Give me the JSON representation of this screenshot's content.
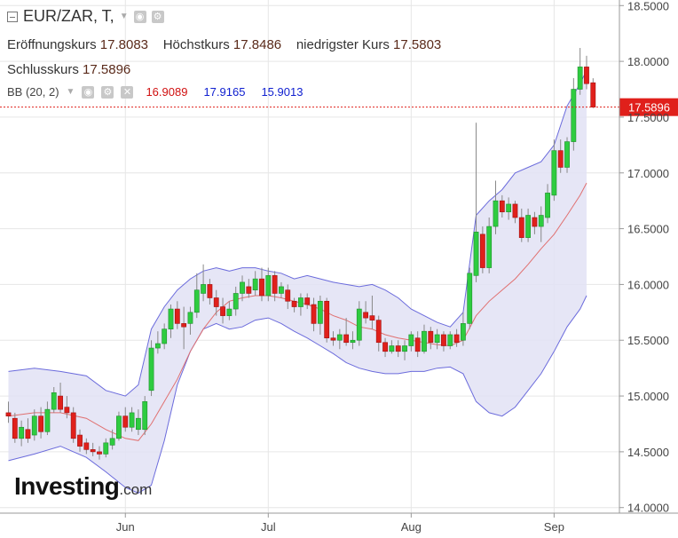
{
  "header": {
    "symbol": "EUR/ZAR, T,",
    "open_label": "Eröffnungskurs",
    "open_value": "17.8083",
    "high_label": "Höchstkurs",
    "high_value": "17.8486",
    "low_label": "niedrigster Kurs",
    "low_value": "17.5803",
    "close_label": "Schlusskurs",
    "close_value": "17.5896"
  },
  "indicator": {
    "label": "BB (20, 2)",
    "middle": "16.9089",
    "upper": "17.9165",
    "lower": "15.9013"
  },
  "logo": {
    "main": "Investing",
    "suffix": ".com"
  },
  "colors": {
    "up": "#2ecc40",
    "down": "#e0201b",
    "band_fill": "#e2e2f4",
    "band_line": "#6b6bdc",
    "middle_line": "#e07070",
    "price_marker": "#e0201b",
    "grid": "#e6e6e6"
  },
  "chart_data": {
    "type": "candlestick",
    "title": "EUR/ZAR",
    "ylim": [
      13.95,
      18.55
    ],
    "y_ticks": [
      "14.0000",
      "14.5000",
      "15.0000",
      "15.5000",
      "16.0000",
      "16.5000",
      "17.0000",
      "17.5000",
      "18.0000",
      "18.5000"
    ],
    "x_labels": [
      {
        "label": "Jun",
        "index": 18
      },
      {
        "label": "Jul",
        "index": 40
      },
      {
        "label": "Aug",
        "index": 62
      },
      {
        "label": "Sep",
        "index": 84
      }
    ],
    "num_slots": 89,
    "last_price": "17.5896",
    "last_price_value": 17.5896,
    "candles": [
      [
        14.85,
        14.82,
        14.95,
        14.76
      ],
      [
        14.8,
        14.62,
        14.85,
        14.58
      ],
      [
        14.62,
        14.72,
        14.78,
        14.55
      ],
      [
        14.7,
        14.62,
        14.8,
        14.58
      ],
      [
        14.65,
        14.82,
        14.88,
        14.6
      ],
      [
        14.82,
        14.68,
        14.9,
        14.62
      ],
      [
        14.68,
        14.88,
        14.95,
        14.65
      ],
      [
        14.88,
        15.03,
        15.08,
        14.85
      ],
      [
        15.0,
        14.88,
        15.12,
        14.85
      ],
      [
        14.9,
        14.85,
        15.0,
        14.8
      ],
      [
        14.85,
        14.62,
        14.9,
        14.58
      ],
      [
        14.65,
        14.55,
        14.7,
        14.5
      ],
      [
        14.58,
        14.52,
        14.62,
        14.48
      ],
      [
        14.52,
        14.5,
        14.58,
        14.46
      ],
      [
        14.5,
        14.48,
        14.55,
        14.43
      ],
      [
        14.48,
        14.58,
        14.62,
        14.45
      ],
      [
        14.56,
        14.62,
        14.7,
        14.52
      ],
      [
        14.62,
        14.82,
        14.86,
        14.6
      ],
      [
        14.82,
        14.72,
        14.9,
        14.68
      ],
      [
        14.72,
        14.85,
        14.9,
        14.68
      ],
      [
        14.7,
        14.8,
        14.88,
        14.65
      ],
      [
        14.7,
        14.95,
        15.0,
        14.65
      ],
      [
        15.05,
        15.43,
        15.5,
        15.0
      ],
      [
        15.43,
        15.47,
        15.58,
        15.38
      ],
      [
        15.47,
        15.6,
        15.65,
        15.42
      ],
      [
        15.6,
        15.78,
        15.82,
        15.52
      ],
      [
        15.78,
        15.65,
        15.85,
        15.6
      ],
      [
        15.65,
        15.62,
        15.8,
        15.42
      ],
      [
        15.65,
        15.75,
        15.8,
        15.55
      ],
      [
        15.75,
        15.95,
        16.1,
        15.7
      ],
      [
        15.92,
        16.0,
        16.18,
        15.85
      ],
      [
        16.0,
        15.88,
        16.05,
        15.82
      ],
      [
        15.88,
        15.8,
        15.95,
        15.72
      ],
      [
        15.8,
        15.72,
        15.88,
        15.65
      ],
      [
        15.72,
        15.78,
        15.85,
        15.68
      ],
      [
        15.78,
        15.92,
        15.98,
        15.72
      ],
      [
        15.92,
        16.02,
        16.08,
        15.85
      ],
      [
        15.98,
        15.92,
        16.05,
        15.88
      ],
      [
        15.95,
        16.05,
        16.12,
        15.9
      ],
      [
        16.05,
        15.9,
        16.15,
        15.85
      ],
      [
        15.9,
        16.08,
        16.15,
        15.85
      ],
      [
        16.08,
        15.92,
        16.12,
        15.85
      ],
      [
        15.92,
        15.98,
        16.02,
        15.88
      ],
      [
        15.95,
        15.85,
        16.0,
        15.78
      ],
      [
        15.85,
        15.8,
        15.88,
        15.75
      ],
      [
        15.8,
        15.88,
        15.92,
        15.72
      ],
      [
        15.88,
        15.82,
        15.92,
        15.78
      ],
      [
        15.82,
        15.65,
        15.88,
        15.58
      ],
      [
        15.65,
        15.85,
        15.9,
        15.55
      ],
      [
        15.85,
        15.52,
        15.88,
        15.48
      ],
      [
        15.52,
        15.5,
        15.58,
        15.45
      ],
      [
        15.5,
        15.55,
        15.6,
        15.42
      ],
      [
        15.55,
        15.48,
        15.7,
        15.45
      ],
      [
        15.48,
        15.5,
        15.58,
        15.42
      ],
      [
        15.5,
        15.78,
        15.85,
        15.45
      ],
      [
        15.75,
        15.7,
        15.85,
        15.65
      ],
      [
        15.72,
        15.68,
        15.9,
        15.6
      ],
      [
        15.68,
        15.48,
        15.72,
        15.4
      ],
      [
        15.48,
        15.4,
        15.52,
        15.35
      ],
      [
        15.4,
        15.45,
        15.5,
        15.38
      ],
      [
        15.45,
        15.4,
        15.5,
        15.35
      ],
      [
        15.4,
        15.45,
        15.5,
        15.32
      ],
      [
        15.45,
        15.55,
        15.58,
        15.4
      ],
      [
        15.52,
        15.4,
        15.58,
        15.35
      ],
      [
        15.4,
        15.58,
        15.64,
        15.38
      ],
      [
        15.58,
        15.48,
        15.62,
        15.42
      ],
      [
        15.48,
        15.55,
        15.6,
        15.42
      ],
      [
        15.55,
        15.45,
        15.58,
        15.4
      ],
      [
        15.45,
        15.55,
        15.58,
        15.42
      ],
      [
        15.55,
        15.48,
        15.6,
        15.44
      ],
      [
        15.5,
        15.65,
        15.75,
        15.45
      ],
      [
        15.65,
        16.1,
        16.15,
        15.6
      ],
      [
        16.08,
        16.47,
        17.45,
        16.02
      ],
      [
        16.45,
        16.15,
        16.52,
        16.1
      ],
      [
        16.15,
        16.52,
        16.6,
        16.1
      ],
      [
        16.52,
        16.75,
        16.93,
        16.45
      ],
      [
        16.75,
        16.65,
        16.8,
        16.6
      ],
      [
        16.65,
        16.72,
        16.78,
        16.58
      ],
      [
        16.72,
        16.6,
        16.75,
        16.55
      ],
      [
        16.6,
        16.42,
        16.68,
        16.38
      ],
      [
        16.42,
        16.62,
        16.68,
        16.38
      ],
      [
        16.6,
        16.52,
        16.65,
        16.45
      ],
      [
        16.52,
        16.62,
        16.7,
        16.38
      ],
      [
        16.6,
        16.82,
        16.9,
        16.55
      ],
      [
        16.8,
        17.2,
        17.3,
        16.75
      ],
      [
        17.2,
        17.05,
        17.3,
        17.0
      ],
      [
        17.05,
        17.28,
        17.32,
        17.0
      ],
      [
        17.28,
        17.75,
        17.85,
        17.2
      ],
      [
        17.75,
        17.95,
        18.12,
        17.7
      ],
      [
        17.95,
        17.8,
        18.05,
        17.75
      ],
      [
        17.8083,
        17.5896,
        17.8486,
        17.5803
      ]
    ],
    "bollinger": {
      "upper": [
        [
          0,
          15.22
        ],
        [
          4,
          15.25
        ],
        [
          8,
          15.22
        ],
        [
          12,
          15.18
        ],
        [
          15,
          15.05
        ],
        [
          18,
          15.0
        ],
        [
          20,
          15.1
        ],
        [
          22,
          15.6
        ],
        [
          24,
          15.8
        ],
        [
          26,
          15.95
        ],
        [
          28,
          16.05
        ],
        [
          30,
          16.12
        ],
        [
          32,
          16.15
        ],
        [
          34,
          16.12
        ],
        [
          36,
          16.15
        ],
        [
          38,
          16.15
        ],
        [
          40,
          16.12
        ],
        [
          42,
          16.1
        ],
        [
          44,
          16.05
        ],
        [
          46,
          16.08
        ],
        [
          48,
          16.05
        ],
        [
          50,
          16.02
        ],
        [
          52,
          16.0
        ],
        [
          54,
          15.98
        ],
        [
          56,
          16.0
        ],
        [
          58,
          15.95
        ],
        [
          60,
          15.88
        ],
        [
          62,
          15.78
        ],
        [
          64,
          15.72
        ],
        [
          66,
          15.66
        ],
        [
          68,
          15.62
        ],
        [
          70,
          15.75
        ],
        [
          72,
          16.62
        ],
        [
          74,
          16.75
        ],
        [
          76,
          16.85
        ],
        [
          78,
          17.0
        ],
        [
          80,
          17.05
        ],
        [
          82,
          17.1
        ],
        [
          84,
          17.25
        ],
        [
          86,
          17.6
        ],
        [
          88,
          17.8
        ],
        [
          89,
          17.92
        ]
      ],
      "lower": [
        [
          0,
          14.42
        ],
        [
          4,
          14.48
        ],
        [
          8,
          14.55
        ],
        [
          12,
          14.45
        ],
        [
          15,
          14.32
        ],
        [
          18,
          14.18
        ],
        [
          20,
          14.13
        ],
        [
          22,
          14.2
        ],
        [
          24,
          14.6
        ],
        [
          26,
          15.1
        ],
        [
          28,
          15.4
        ],
        [
          30,
          15.6
        ],
        [
          32,
          15.65
        ],
        [
          34,
          15.6
        ],
        [
          36,
          15.62
        ],
        [
          38,
          15.68
        ],
        [
          40,
          15.7
        ],
        [
          42,
          15.65
        ],
        [
          44,
          15.58
        ],
        [
          46,
          15.52
        ],
        [
          48,
          15.45
        ],
        [
          50,
          15.38
        ],
        [
          52,
          15.3
        ],
        [
          54,
          15.25
        ],
        [
          56,
          15.22
        ],
        [
          58,
          15.2
        ],
        [
          60,
          15.2
        ],
        [
          62,
          15.22
        ],
        [
          64,
          15.22
        ],
        [
          66,
          15.25
        ],
        [
          68,
          15.26
        ],
        [
          70,
          15.2
        ],
        [
          72,
          14.95
        ],
        [
          74,
          14.85
        ],
        [
          76,
          14.82
        ],
        [
          78,
          14.9
        ],
        [
          80,
          15.05
        ],
        [
          82,
          15.2
        ],
        [
          84,
          15.4
        ],
        [
          86,
          15.62
        ],
        [
          88,
          15.78
        ],
        [
          89,
          15.9
        ]
      ]
    },
    "middle": [
      [
        0,
        14.82
      ],
      [
        4,
        14.85
      ],
      [
        8,
        14.85
      ],
      [
        12,
        14.8
      ],
      [
        15,
        14.7
      ],
      [
        18,
        14.62
      ],
      [
        20,
        14.6
      ],
      [
        22,
        14.75
      ],
      [
        24,
        14.95
      ],
      [
        26,
        15.15
      ],
      [
        28,
        15.4
      ],
      [
        30,
        15.6
      ],
      [
        32,
        15.75
      ],
      [
        34,
        15.85
      ],
      [
        36,
        15.88
      ],
      [
        38,
        15.9
      ],
      [
        40,
        15.9
      ],
      [
        42,
        15.88
      ],
      [
        44,
        15.85
      ],
      [
        46,
        15.82
      ],
      [
        48,
        15.78
      ],
      [
        50,
        15.72
      ],
      [
        52,
        15.68
      ],
      [
        54,
        15.62
      ],
      [
        56,
        15.6
      ],
      [
        58,
        15.55
      ],
      [
        60,
        15.52
      ],
      [
        62,
        15.5
      ],
      [
        64,
        15.48
      ],
      [
        66,
        15.46
      ],
      [
        68,
        15.45
      ],
      [
        70,
        15.5
      ],
      [
        72,
        15.72
      ],
      [
        74,
        15.85
      ],
      [
        76,
        15.95
      ],
      [
        78,
        16.05
      ],
      [
        80,
        16.18
      ],
      [
        82,
        16.32
      ],
      [
        84,
        16.45
      ],
      [
        86,
        16.62
      ],
      [
        88,
        16.8
      ],
      [
        89,
        16.91
      ]
    ]
  }
}
